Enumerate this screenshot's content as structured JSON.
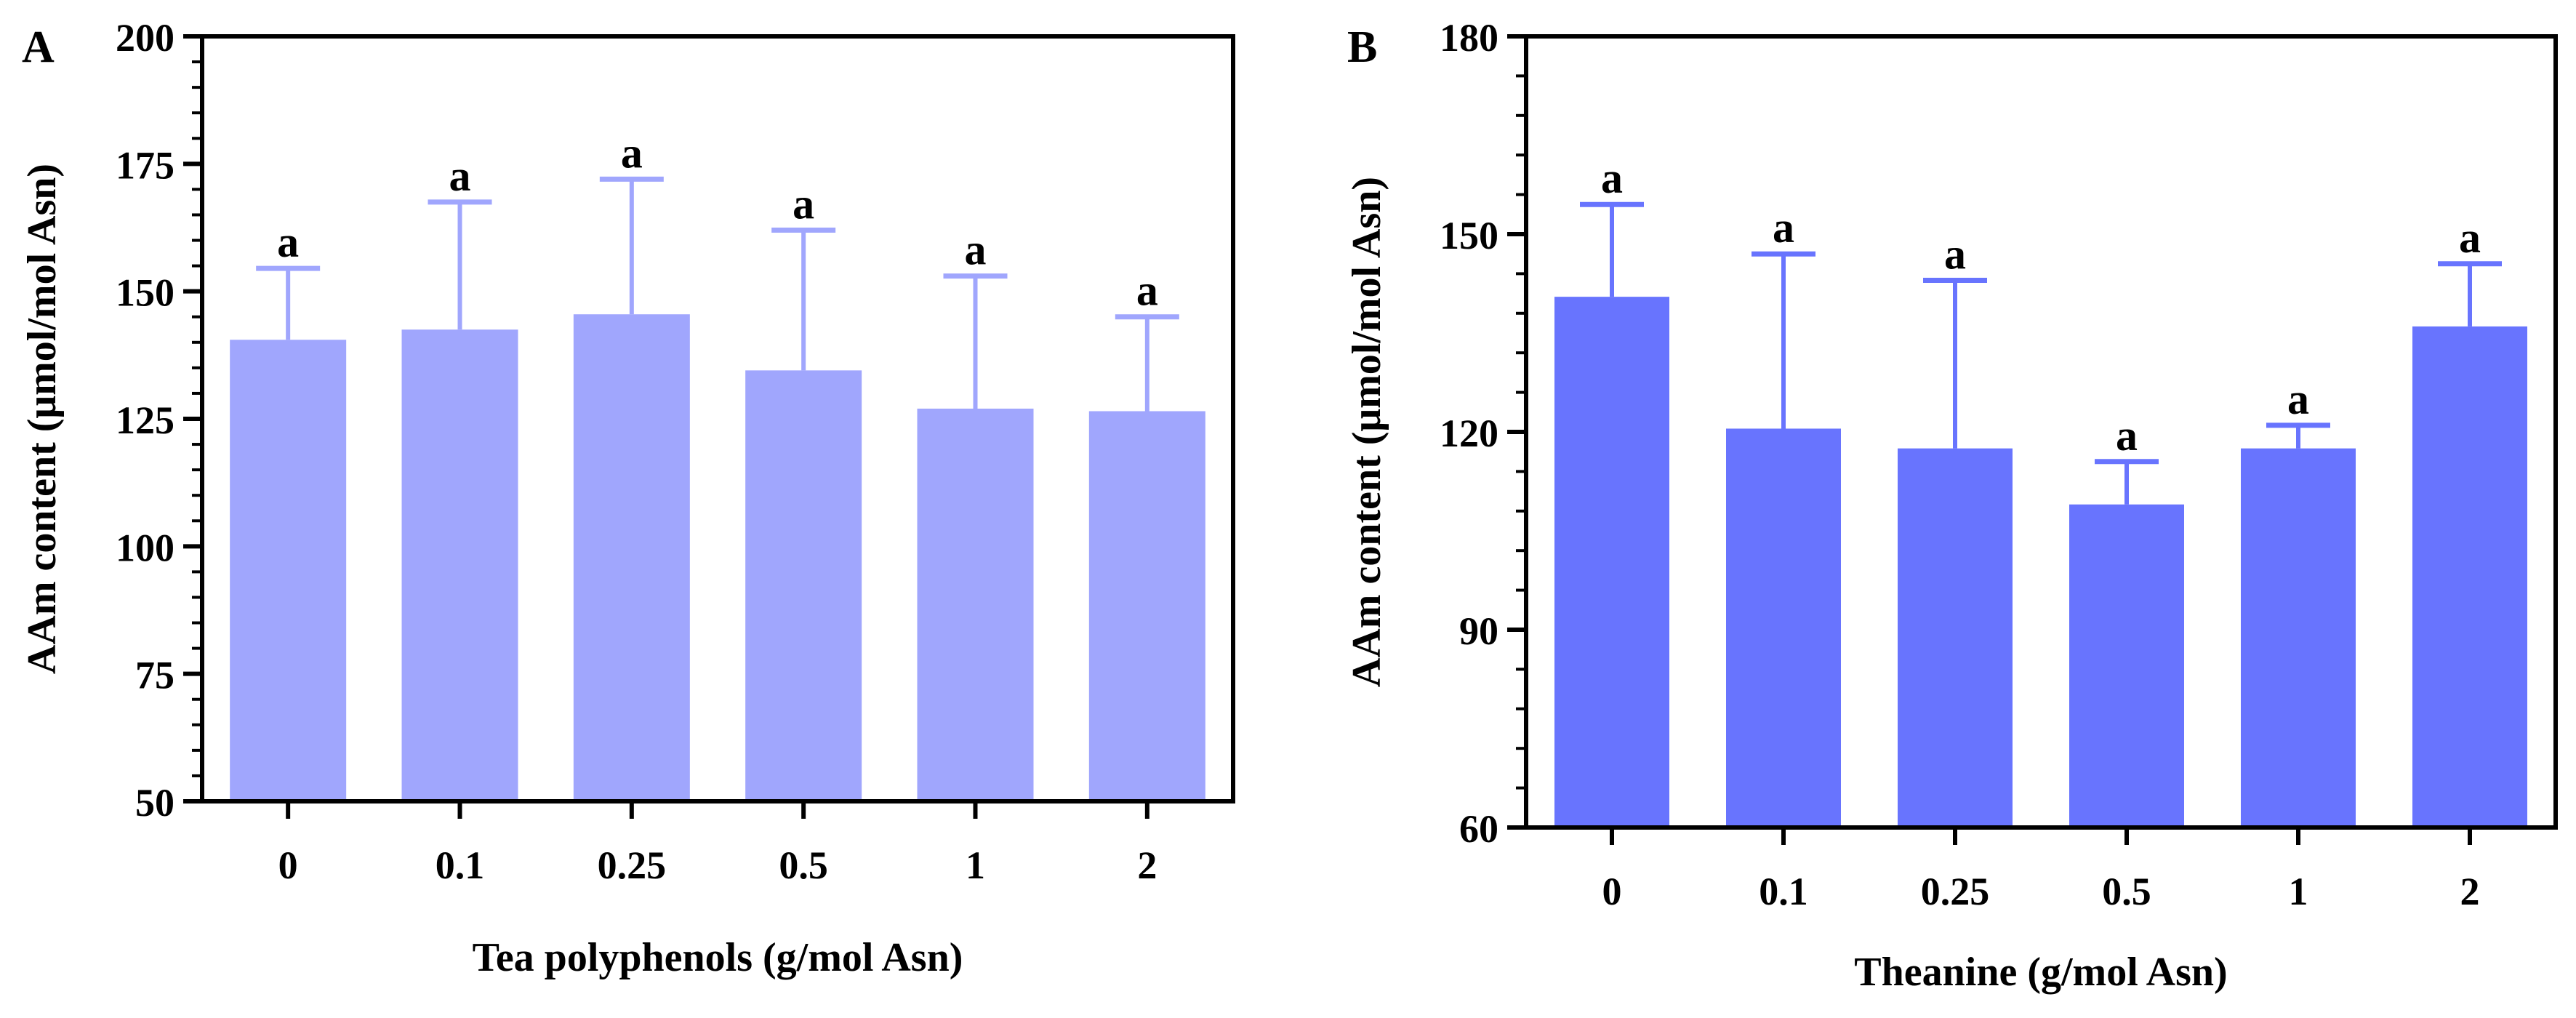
{
  "chart_data": [
    {
      "type": "bar",
      "panel_label": "A",
      "title": "",
      "xlabel": "Tea polyphenols (g/mol Asn)",
      "ylabel": "AAm content (μmol/mol Asn)",
      "categories": [
        "0",
        "0.1",
        "0.25",
        "0.5",
        "1",
        "2"
      ],
      "values": [
        140.5,
        142.5,
        145.5,
        134.5,
        127,
        126.5
      ],
      "error_upper": [
        154.5,
        167.5,
        172,
        162,
        153,
        145
      ],
      "significance": [
        "a",
        "a",
        "a",
        "a",
        "a",
        "a"
      ],
      "ylim": [
        50,
        200
      ],
      "yticks": [
        50,
        75,
        100,
        125,
        150,
        175,
        200
      ],
      "ytick_labels": [
        "50",
        "75",
        "100",
        "125",
        "150",
        "175",
        "200"
      ],
      "grid": false,
      "bar_color": "#a0a6fd"
    },
    {
      "type": "bar",
      "panel_label": "B",
      "title": "",
      "xlabel": "Theanine (g/mol Asn)",
      "ylabel": "AAm content (μmol/mol Asn)",
      "categories": [
        "0",
        "0.1",
        "0.25",
        "0.5",
        "1",
        "2"
      ],
      "values": [
        140.5,
        120.5,
        117.5,
        109,
        117.5,
        136
      ],
      "error_upper": [
        154.5,
        147,
        143,
        115.5,
        121,
        145.5
      ],
      "significance": [
        "a",
        "a",
        "a",
        "a",
        "a",
        "a"
      ],
      "ylim": [
        60,
        180
      ],
      "yticks": [
        60,
        90,
        120,
        150,
        180
      ],
      "ytick_labels": [
        "60",
        "90",
        "120",
        "150",
        "180"
      ],
      "grid": false,
      "bar_color": "#6874fe"
    }
  ]
}
